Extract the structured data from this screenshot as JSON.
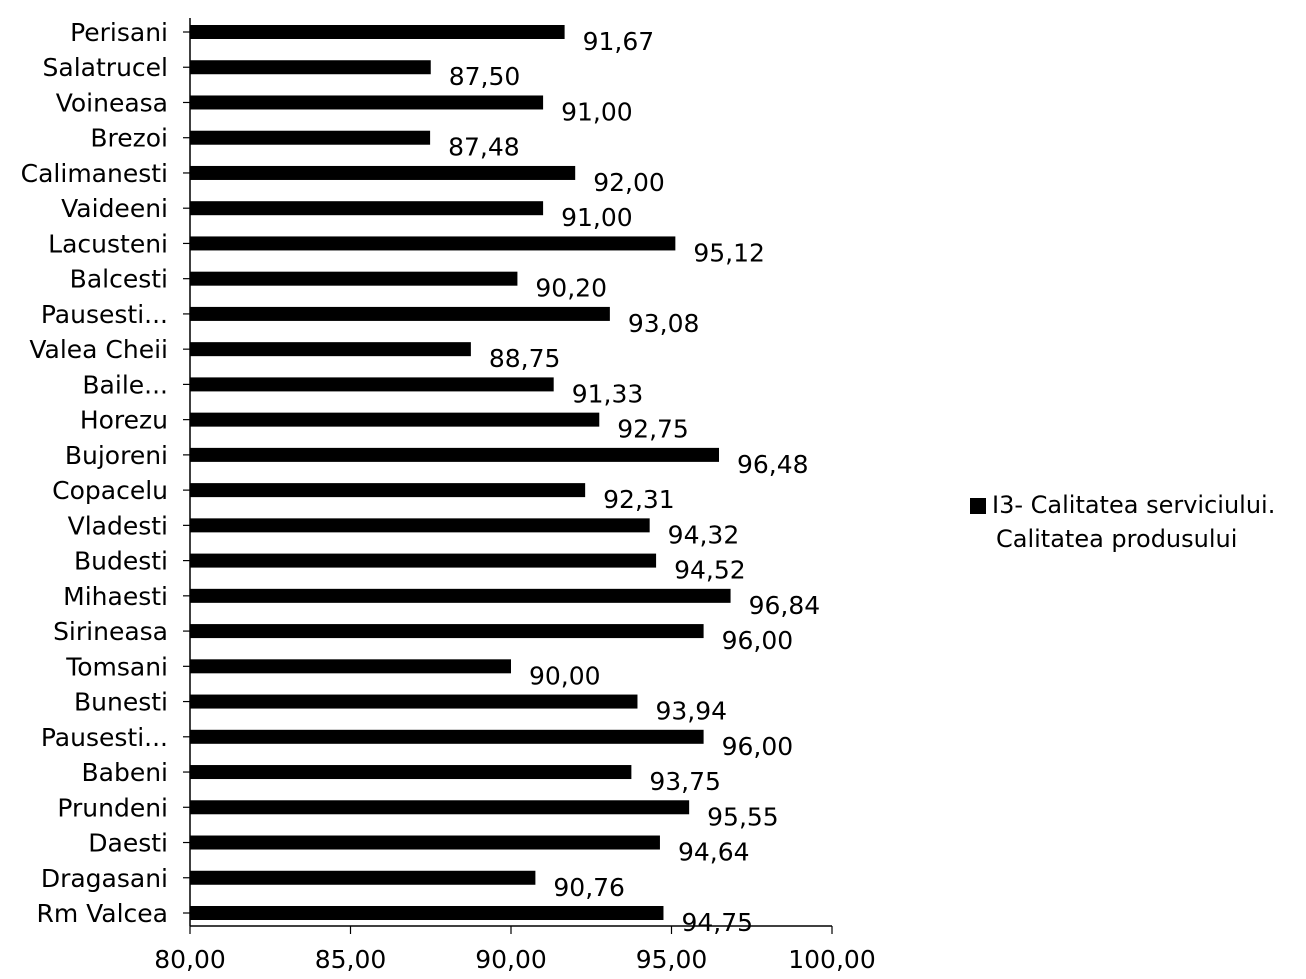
{
  "chart_data": {
    "type": "bar",
    "orientation": "horizontal",
    "categories": [
      "Perisani",
      "Salatrucel",
      "Voineasa",
      "Brezoi",
      "Calimanesti",
      "Vaideeni",
      "Lacusteni",
      "Balcesti",
      "Pausesti...",
      "Valea Cheii",
      "Baile...",
      "Horezu",
      "Bujoreni",
      "Copacelu",
      "Vladesti",
      "Budesti",
      "Mihaesti",
      "Sirineasa",
      "Tomsani",
      "Bunesti",
      "Pausesti...",
      "Babeni",
      "Prundeni",
      "Daesti",
      "Dragasani",
      "Rm Valcea"
    ],
    "series": [
      {
        "name": "I3- Calitatea serviciului. Calitatea produsului",
        "values": [
          91.67,
          87.5,
          91.0,
          87.48,
          92.0,
          91.0,
          95.12,
          90.2,
          93.08,
          88.75,
          91.33,
          92.75,
          96.48,
          92.31,
          94.32,
          94.52,
          96.84,
          96.0,
          90.0,
          93.94,
          96.0,
          93.75,
          95.55,
          94.64,
          90.76,
          94.75
        ],
        "labels": [
          "91,67",
          "87,50",
          "91,00",
          "87,48",
          "92,00",
          "91,00",
          "95,12",
          "90,20",
          "93,08",
          "88,75",
          "91,33",
          "92,75",
          "96,48",
          "92,31",
          "94,32",
          "94,52",
          "96,84",
          "96,00",
          "90,00",
          "93,94",
          "96,00",
          "93,75",
          "95,55",
          "94,64",
          "90,76",
          "94,75"
        ],
        "color": "#000000"
      }
    ],
    "xlim": [
      80,
      100
    ],
    "xticks": [
      80,
      85,
      90,
      95,
      100
    ],
    "xtick_labels": [
      "80,00",
      "85,00",
      "90,00",
      "95,00",
      "100,00"
    ],
    "grid": false,
    "legend_position": "right"
  },
  "legend": {
    "line1": "I3- Calitatea serviciului.",
    "line2": "Calitatea produsului"
  }
}
